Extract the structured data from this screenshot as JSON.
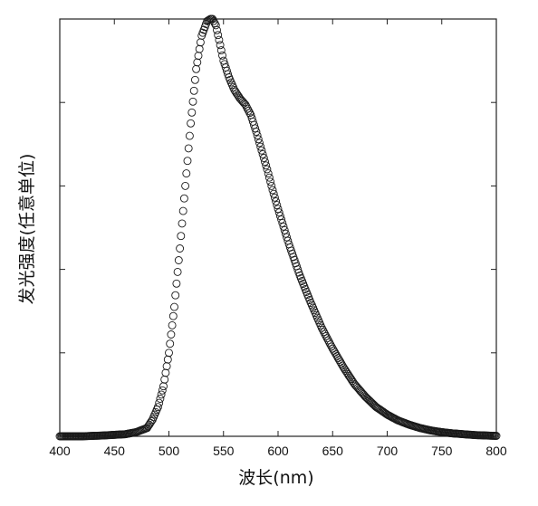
{
  "chart_data": {
    "type": "scatter",
    "title": "",
    "xlabel": "波长(nm)",
    "ylabel": "发光强度(任意单位)",
    "xlim": [
      400,
      800
    ],
    "ylim": [
      0,
      1.0
    ],
    "xticks": [
      400,
      450,
      500,
      550,
      600,
      650,
      700,
      750,
      800
    ],
    "yticks": [
      0,
      0.2,
      0.4,
      0.6,
      0.8,
      1.0
    ],
    "grid": false,
    "marker": "open-circle",
    "series": [
      {
        "x": [
          400,
          420,
          440,
          460,
          470,
          480,
          485,
          490,
          495,
          500,
          505,
          510,
          515,
          520,
          525,
          530,
          535,
          538,
          540,
          543,
          546,
          550,
          555,
          560,
          565,
          570,
          575,
          580,
          585,
          590,
          595,
          600,
          610,
          620,
          630,
          640,
          650,
          660,
          670,
          680,
          690,
          700,
          710,
          720,
          730,
          740,
          750,
          760,
          770,
          780,
          790,
          800
        ],
        "y": [
          0.0,
          0.0,
          0.002,
          0.005,
          0.01,
          0.02,
          0.04,
          0.07,
          0.12,
          0.2,
          0.31,
          0.45,
          0.6,
          0.75,
          0.88,
          0.96,
          0.995,
          1.0,
          1.0,
          0.985,
          0.95,
          0.9,
          0.86,
          0.83,
          0.81,
          0.795,
          0.77,
          0.73,
          0.685,
          0.64,
          0.59,
          0.545,
          0.46,
          0.385,
          0.32,
          0.26,
          0.21,
          0.165,
          0.125,
          0.095,
          0.07,
          0.052,
          0.038,
          0.028,
          0.02,
          0.014,
          0.01,
          0.007,
          0.005,
          0.003,
          0.002,
          0.001
        ]
      }
    ]
  }
}
